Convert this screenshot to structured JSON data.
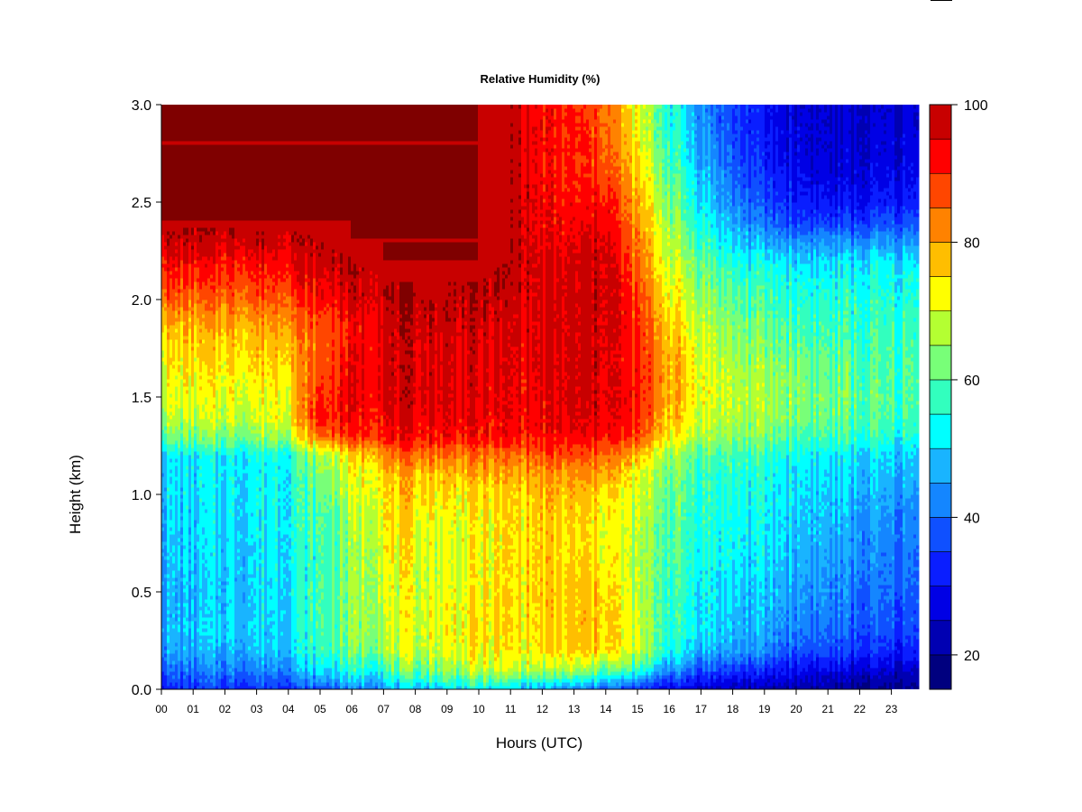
{
  "chart_data": {
    "type": "heatmap",
    "title": "Relative Humidity (%)",
    "xlabel": "Hours (UTC)",
    "ylabel": "Height (km)",
    "x_ticks": [
      "00",
      "01",
      "02",
      "03",
      "04",
      "05",
      "06",
      "07",
      "08",
      "09",
      "10",
      "11",
      "12",
      "13",
      "14",
      "15",
      "16",
      "17",
      "18",
      "19",
      "20",
      "21",
      "22",
      "23"
    ],
    "xlim": [
      0,
      24
    ],
    "y_ticks": [
      "0.0",
      "0.5",
      "1.0",
      "1.5",
      "2.0",
      "2.5",
      "3.0"
    ],
    "ylim": [
      0,
      3.0
    ],
    "colorbar": {
      "ticks": [
        "20",
        "40",
        "60",
        "80",
        "100"
      ],
      "range": [
        15,
        100
      ],
      "levels": [
        15,
        20,
        25,
        30,
        35,
        40,
        45,
        50,
        55,
        60,
        65,
        70,
        75,
        80,
        85,
        90,
        95,
        100
      ],
      "colors": [
        "#00007f",
        "#0000b2",
        "#0000e5",
        "#0a1eff",
        "#0f50ff",
        "#1486ff",
        "#19b4ff",
        "#00ffff",
        "#32ffbe",
        "#78ff78",
        "#b4ff32",
        "#ffff00",
        "#ffbe00",
        "#ff8200",
        "#ff4600",
        "#ff0000",
        "#c80000",
        "#7f0000"
      ]
    },
    "grid": false,
    "heights_km": [
      0.0,
      0.1,
      0.2,
      0.3,
      0.4,
      0.5,
      0.6,
      0.7,
      0.8,
      0.9,
      1.0,
      1.1,
      1.2,
      1.3,
      1.4,
      1.5,
      1.6,
      1.7,
      1.8,
      1.9,
      2.0,
      2.1,
      2.2,
      2.3,
      2.4,
      2.5,
      2.6,
      2.7,
      2.8,
      2.9,
      3.0
    ],
    "hours_utc": [
      0,
      1,
      2,
      3,
      4,
      5,
      6,
      7,
      8,
      9,
      10,
      11,
      12,
      13,
      14,
      15,
      16,
      17,
      18,
      19,
      20,
      21,
      22,
      23,
      24
    ],
    "values": [
      [
        32,
        33,
        34,
        34,
        35,
        38,
        42,
        45,
        48,
        50,
        52,
        50,
        45,
        42,
        40,
        32,
        28,
        25,
        23,
        22,
        21,
        20,
        19,
        18,
        18
      ],
      [
        40,
        40,
        42,
        43,
        45,
        50,
        55,
        58,
        62,
        65,
        68,
        68,
        66,
        65,
        62,
        55,
        45,
        38,
        35,
        32,
        30,
        28,
        26,
        25,
        24
      ],
      [
        45,
        45,
        47,
        48,
        50,
        56,
        62,
        66,
        68,
        70,
        72,
        73,
        74,
        76,
        76,
        68,
        55,
        48,
        45,
        42,
        38,
        36,
        34,
        32,
        32
      ],
      [
        47,
        48,
        50,
        50,
        52,
        58,
        64,
        68,
        70,
        72,
        74,
        74,
        75,
        76,
        77,
        68,
        58,
        52,
        48,
        45,
        42,
        40,
        37,
        36,
        36
      ],
      [
        46,
        47,
        49,
        50,
        52,
        58,
        64,
        70,
        70,
        72,
        74,
        74,
        75,
        76,
        77,
        67,
        58,
        52,
        49,
        47,
        44,
        42,
        39,
        38,
        37
      ],
      [
        46,
        47,
        49,
        50,
        53,
        58,
        64,
        70,
        70,
        71,
        73,
        74,
        76,
        76,
        76,
        66,
        58,
        53,
        50,
        48,
        46,
        43,
        40,
        39,
        38
      ],
      [
        47,
        48,
        49,
        51,
        53,
        57,
        64,
        71,
        70,
        70,
        72,
        74,
        76,
        75,
        75,
        66,
        59,
        54,
        51,
        49,
        47,
        44,
        42,
        40,
        39
      ],
      [
        48,
        48,
        50,
        51,
        54,
        57,
        64,
        72,
        71,
        70,
        72,
        74,
        76,
        74,
        74,
        66,
        60,
        55,
        52,
        50,
        48,
        45,
        43,
        41,
        40
      ],
      [
        48,
        49,
        50,
        52,
        54,
        58,
        65,
        73,
        72,
        70,
        72,
        74,
        76,
        74,
        73,
        66,
        60,
        56,
        53,
        51,
        49,
        47,
        44,
        42,
        41
      ],
      [
        49,
        49,
        51,
        52,
        55,
        58,
        66,
        74,
        74,
        72,
        73,
        74,
        76,
        75,
        74,
        67,
        61,
        56,
        54,
        52,
        50,
        48,
        45,
        43,
        42
      ],
      [
        50,
        50,
        51,
        53,
        55,
        60,
        68,
        75,
        76,
        74,
        74,
        75,
        77,
        77,
        76,
        68,
        62,
        57,
        55,
        53,
        51,
        49,
        47,
        45,
        44
      ],
      [
        50,
        50,
        52,
        53,
        55,
        62,
        70,
        76,
        78,
        78,
        78,
        78,
        80,
        80,
        80,
        70,
        63,
        58,
        56,
        54,
        52,
        50,
        48,
        47,
        46
      ],
      [
        51,
        51,
        52,
        54,
        56,
        66,
        74,
        82,
        84,
        84,
        84,
        84,
        86,
        86,
        86,
        76,
        66,
        60,
        58,
        56,
        54,
        52,
        50,
        49,
        48
      ],
      [
        62,
        62,
        63,
        64,
        68,
        84,
        90,
        92,
        93,
        93,
        92,
        92,
        92,
        93,
        93,
        88,
        74,
        67,
        64,
        62,
        60,
        58,
        56,
        55,
        54
      ],
      [
        68,
        68,
        69,
        70,
        73,
        92,
        93,
        94,
        95,
        95,
        94,
        93,
        93,
        95,
        95,
        90,
        78,
        70,
        67,
        65,
        63,
        61,
        59,
        58,
        57
      ],
      [
        70,
        70,
        71,
        72,
        74,
        90,
        94,
        95,
        96,
        96,
        95,
        94,
        94,
        96,
        96,
        91,
        80,
        72,
        68,
        66,
        64,
        62,
        60,
        59,
        58
      ],
      [
        72,
        72,
        73,
        74,
        76,
        88,
        94,
        96,
        96,
        96,
        95,
        94,
        94,
        96,
        96,
        91,
        80,
        72,
        67,
        65,
        63,
        61,
        59,
        58,
        58
      ],
      [
        74,
        74,
        75,
        76,
        78,
        86,
        93,
        96,
        96,
        96,
        95,
        95,
        95,
        96,
        96,
        90,
        80,
        71,
        66,
        64,
        62,
        60,
        58,
        58,
        58
      ],
      [
        76,
        76,
        77,
        78,
        80,
        86,
        92,
        96,
        97,
        97,
        96,
        95,
        95,
        96,
        97,
        90,
        78,
        70,
        64,
        62,
        60,
        58,
        57,
        57,
        57
      ],
      [
        80,
        79,
        80,
        81,
        84,
        88,
        93,
        97,
        98,
        98,
        97,
        96,
        95,
        96,
        97,
        89,
        76,
        68,
        62,
        60,
        58,
        57,
        56,
        56,
        56
      ],
      [
        86,
        84,
        85,
        86,
        88,
        92,
        96,
        98,
        99,
        99,
        98,
        97,
        95,
        96,
        98,
        88,
        74,
        66,
        60,
        58,
        56,
        55,
        55,
        55,
        55
      ],
      [
        90,
        89,
        89,
        90,
        92,
        95,
        98,
        99,
        99,
        99,
        99,
        98,
        95,
        96,
        98,
        86,
        72,
        64,
        58,
        56,
        54,
        53,
        53,
        53,
        53
      ],
      [
        93,
        93,
        93,
        94,
        95,
        97,
        99,
        100,
        100,
        100,
        100,
        99,
        95,
        95,
        98,
        84,
        70,
        62,
        55,
        52,
        50,
        50,
        50,
        50,
        50
      ],
      [
        98,
        97,
        97,
        98,
        98,
        99,
        100,
        100,
        100,
        100,
        100,
        99,
        94,
        94,
        97,
        82,
        68,
        58,
        50,
        46,
        44,
        44,
        44,
        44,
        44
      ],
      [
        100,
        100,
        100,
        100,
        100,
        100,
        100,
        100,
        100,
        100,
        100,
        99,
        93,
        92,
        95,
        80,
        66,
        55,
        46,
        40,
        36,
        35,
        35,
        36,
        37
      ],
      [
        100,
        100,
        100,
        100,
        100,
        100,
        100,
        100,
        100,
        100,
        100,
        99,
        93,
        91,
        93,
        78,
        64,
        52,
        42,
        36,
        32,
        30,
        30,
        31,
        32
      ],
      [
        100,
        100,
        100,
        100,
        100,
        100,
        100,
        100,
        100,
        100,
        100,
        99,
        92,
        90,
        90,
        76,
        62,
        50,
        40,
        34,
        30,
        28,
        27,
        28,
        29
      ],
      [
        100,
        100,
        100,
        100,
        100,
        100,
        100,
        100,
        100,
        100,
        100,
        99,
        92,
        90,
        88,
        74,
        60,
        48,
        38,
        32,
        28,
        26,
        26,
        27,
        28
      ],
      [
        100,
        100,
        100,
        100,
        100,
        100,
        100,
        100,
        100,
        100,
        100,
        99,
        92,
        90,
        87,
        72,
        58,
        46,
        37,
        31,
        27,
        25,
        25,
        26,
        27
      ],
      [
        100,
        100,
        100,
        100,
        100,
        100,
        100,
        100,
        100,
        100,
        100,
        99,
        92,
        90,
        86,
        70,
        56,
        45,
        36,
        30,
        27,
        25,
        25,
        25,
        26
      ],
      [
        100,
        100,
        100,
        100,
        100,
        100,
        100,
        100,
        100,
        100,
        100,
        99,
        92,
        90,
        86,
        70,
        56,
        44,
        36,
        30,
        26,
        25,
        24,
        25,
        26
      ]
    ]
  }
}
